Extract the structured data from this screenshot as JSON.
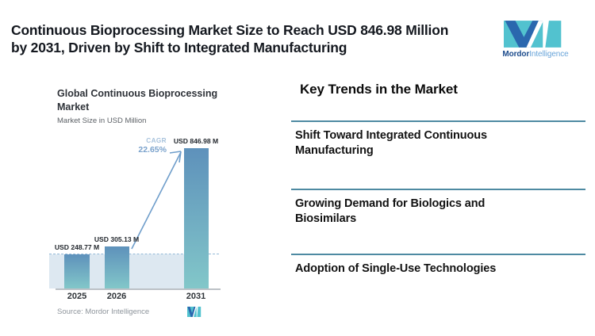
{
  "page": {
    "background": "#ffffff"
  },
  "header": {
    "title_line1": "Continuous Bioprocessing Market Size to Reach USD 846.98 Million",
    "title_line2": "by 2031, Driven by Shift to Integrated Manufacturing"
  },
  "brand": {
    "name_primary": "Mordor",
    "name_secondary": "Intelligence",
    "logo_teal": "#52c2cf",
    "logo_navy": "#2a67ae"
  },
  "chart": {
    "title_line1": "Global Continuous Bioprocessing",
    "title_line2": "Market",
    "subtitle": "Market Size in USD Million",
    "source": "Source: Mordor Intelligence",
    "colors": {
      "bar_gradient_top": "#5e91bb",
      "bar_gradient_bottom": "#82c7c9",
      "pale_region": "#dde8f1",
      "dashed_reference": "#94bad8",
      "arrow": "#6f9ecb",
      "axis": "#bcc1c6"
    }
  },
  "chart_data": {
    "type": "bar",
    "title": "Global Continuous Bioprocessing Market",
    "subtitle": "Market Size in USD Million",
    "categories": [
      "2025",
      "2026",
      "2031"
    ],
    "values": [
      248.77,
      305.13,
      846.98
    ],
    "bar_labels": [
      "USD 248.77 M",
      "USD 305.13 M",
      "USD 846.98 M"
    ],
    "unit": "USD Million",
    "annotations": {
      "cagr_label": "CAGR",
      "cagr_value": "22.65%",
      "arrow": "from top of 2026 bar to top of 2031 bar",
      "dashed_reference_line": "horizontal dashed line at 2025 bar level"
    },
    "legend": "none",
    "grid": "off",
    "xlabel": "",
    "ylabel": "Market Size in USD Million"
  },
  "trends": {
    "heading": "Key Trends in the Market",
    "items": [
      "Shift Toward Integrated Continuous Manufacturing",
      "Growing Demand for Biologics and Biosimilars",
      "Adoption of Single-Use Technologies"
    ],
    "divider_color": "#4e8aa2"
  }
}
